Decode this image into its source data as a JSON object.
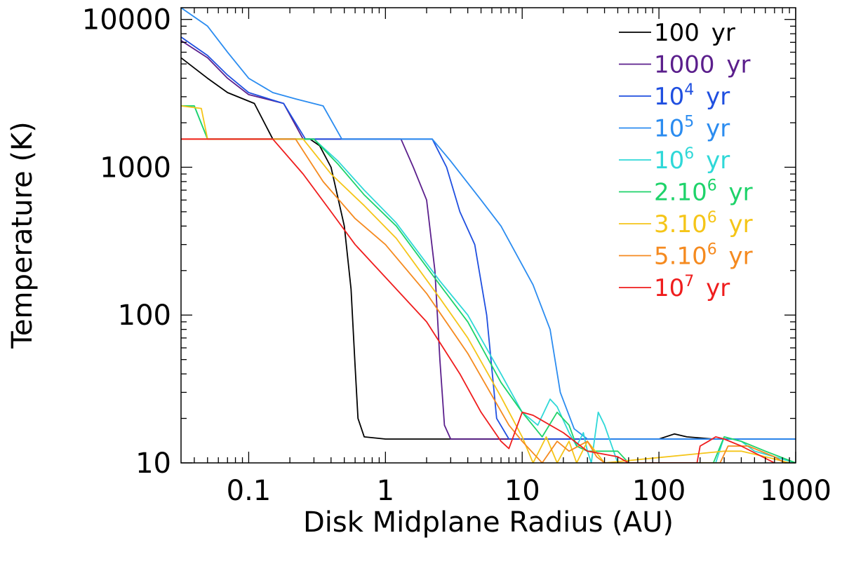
{
  "chart_data": {
    "type": "line",
    "xlabel": "Disk Midplane Radius (AU)",
    "ylabel": "Temperature (K)",
    "x_scale": "log",
    "y_scale": "log",
    "xlim": [
      0.032,
      1000
    ],
    "ylim": [
      10,
      12000
    ],
    "x_ticks": [
      0.1,
      1,
      10,
      100,
      1000
    ],
    "x_tick_labels": [
      "0.1",
      "1",
      "10",
      "100",
      "1000"
    ],
    "y_ticks": [
      10,
      100,
      1000,
      10000
    ],
    "y_tick_labels": [
      "10",
      "100",
      "1000",
      "10000"
    ],
    "grid": false,
    "legend_position": "top-right",
    "series": [
      {
        "name": "100 yr",
        "legend": {
          "base": "100",
          "exp": "",
          "tail": " yr"
        },
        "color": "#000000",
        "points": [
          [
            0.032,
            5500
          ],
          [
            0.05,
            4000
          ],
          [
            0.07,
            3200
          ],
          [
            0.11,
            2700
          ],
          [
            0.15,
            1550
          ],
          [
            0.28,
            1550
          ],
          [
            0.33,
            1400
          ],
          [
            0.4,
            1000
          ],
          [
            0.5,
            400
          ],
          [
            0.56,
            150
          ],
          [
            0.6,
            45
          ],
          [
            0.63,
            20
          ],
          [
            0.7,
            15
          ],
          [
            1,
            14.5
          ],
          [
            100,
            14.5
          ],
          [
            130,
            15.7
          ],
          [
            160,
            15
          ],
          [
            250,
            14.5
          ],
          [
            1000,
            14.5
          ]
        ]
      },
      {
        "name": "1000 yr",
        "legend": {
          "base": "1000",
          "exp": "",
          "tail": " yr"
        },
        "color": "#5b1f8c",
        "points": [
          [
            0.032,
            7200
          ],
          [
            0.05,
            5500
          ],
          [
            0.07,
            4000
          ],
          [
            0.1,
            3100
          ],
          [
            0.18,
            2700
          ],
          [
            0.25,
            1550
          ],
          [
            1.3,
            1550
          ],
          [
            1.6,
            1000
          ],
          [
            2.0,
            600
          ],
          [
            2.3,
            200
          ],
          [
            2.5,
            50
          ],
          [
            2.7,
            18
          ],
          [
            3,
            14.5
          ],
          [
            1000,
            14.5
          ]
        ]
      },
      {
        "name": "10⁴ yr",
        "legend": {
          "base": "10",
          "exp": "4",
          "tail": " yr"
        },
        "color": "#1f4fe0",
        "points": [
          [
            0.032,
            7600
          ],
          [
            0.05,
            5700
          ],
          [
            0.07,
            4200
          ],
          [
            0.1,
            3200
          ],
          [
            0.18,
            2700
          ],
          [
            0.26,
            1550
          ],
          [
            2.2,
            1550
          ],
          [
            2.8,
            1000
          ],
          [
            3.5,
            500
          ],
          [
            4.5,
            300
          ],
          [
            5.5,
            100
          ],
          [
            6.5,
            20
          ],
          [
            8,
            14.5
          ],
          [
            1000,
            14.5
          ]
        ]
      },
      {
        "name": "10⁵ yr",
        "legend": {
          "base": "10",
          "exp": "5",
          "tail": " yr"
        },
        "color": "#2b8cf0",
        "points": [
          [
            0.032,
            12000
          ],
          [
            0.05,
            9000
          ],
          [
            0.07,
            6000
          ],
          [
            0.1,
            4000
          ],
          [
            0.15,
            3200
          ],
          [
            0.22,
            2900
          ],
          [
            0.35,
            2600
          ],
          [
            0.48,
            1550
          ],
          [
            2.2,
            1550
          ],
          [
            3,
            1100
          ],
          [
            5,
            600
          ],
          [
            7,
            400
          ],
          [
            12,
            160
          ],
          [
            16,
            80
          ],
          [
            19,
            30
          ],
          [
            24,
            17
          ],
          [
            30,
            14.5
          ],
          [
            1000,
            14.5
          ]
        ]
      },
      {
        "name": "10⁶ yr",
        "legend": {
          "base": "10",
          "exp": "6",
          "tail": " yr"
        },
        "color": "#2fd8d8",
        "points": [
          [
            0.032,
            2600
          ],
          [
            0.04,
            2600
          ],
          [
            0.05,
            1550
          ],
          [
            0.3,
            1550
          ],
          [
            0.45,
            1100
          ],
          [
            0.7,
            700
          ],
          [
            1.2,
            420
          ],
          [
            2.5,
            170
          ],
          [
            4,
            100
          ],
          [
            7,
            40
          ],
          [
            10,
            22
          ],
          [
            13,
            18
          ],
          [
            16,
            27
          ],
          [
            18,
            24
          ],
          [
            22,
            16
          ],
          [
            25,
            13
          ],
          [
            28,
            16
          ],
          [
            30,
            12
          ],
          [
            32,
            10
          ],
          [
            36,
            22
          ],
          [
            40,
            18
          ],
          [
            50,
            10
          ],
          [
            260,
            10
          ],
          [
            300,
            15
          ],
          [
            400,
            14
          ],
          [
            500,
            12
          ],
          [
            1000,
            10
          ]
        ]
      },
      {
        "name": "2.10⁶ yr",
        "legend": {
          "base": "2.10",
          "exp": "6",
          "tail": " yr"
        },
        "color": "#1ed36a",
        "points": [
          [
            0.032,
            2600
          ],
          [
            0.04,
            2600
          ],
          [
            0.05,
            1550
          ],
          [
            0.3,
            1550
          ],
          [
            0.45,
            1050
          ],
          [
            0.7,
            650
          ],
          [
            1.2,
            400
          ],
          [
            2.5,
            160
          ],
          [
            4,
            90
          ],
          [
            7,
            35
          ],
          [
            10,
            22
          ],
          [
            14,
            15
          ],
          [
            18,
            22
          ],
          [
            22,
            18
          ],
          [
            25,
            13
          ],
          [
            30,
            12
          ],
          [
            50,
            12
          ],
          [
            60,
            10
          ],
          [
            250,
            10
          ],
          [
            300,
            15
          ],
          [
            400,
            14
          ],
          [
            600,
            12
          ],
          [
            1000,
            10
          ]
        ]
      },
      {
        "name": "3.10⁶ yr",
        "legend": {
          "base": "3.10",
          "exp": "6",
          "tail": " yr"
        },
        "color": "#f5c518",
        "points": [
          [
            0.032,
            2600
          ],
          [
            0.045,
            2500
          ],
          [
            0.05,
            1550
          ],
          [
            0.25,
            1550
          ],
          [
            0.4,
            900
          ],
          [
            0.7,
            550
          ],
          [
            1.2,
            330
          ],
          [
            2.5,
            130
          ],
          [
            4,
            70
          ],
          [
            7,
            28
          ],
          [
            10,
            15
          ],
          [
            12,
            10
          ],
          [
            15,
            15
          ],
          [
            18,
            10
          ],
          [
            22,
            14
          ],
          [
            25,
            10
          ],
          [
            30,
            14
          ],
          [
            40,
            10
          ],
          [
            300,
            12
          ],
          [
            400,
            12
          ],
          [
            600,
            11
          ],
          [
            900,
            10
          ]
        ]
      },
      {
        "name": "5.10⁶ yr",
        "legend": {
          "base": "5.10",
          "exp": "6",
          "tail": " yr"
        },
        "color": "#f58a1f",
        "points": [
          [
            0.032,
            1550
          ],
          [
            0.22,
            1550
          ],
          [
            0.35,
            800
          ],
          [
            0.6,
            450
          ],
          [
            1,
            300
          ],
          [
            2,
            140
          ],
          [
            4,
            55
          ],
          [
            8,
            18
          ],
          [
            10,
            14
          ],
          [
            14,
            10
          ],
          [
            18,
            14
          ],
          [
            22,
            12
          ],
          [
            30,
            14
          ],
          [
            35,
            11
          ],
          [
            40,
            10
          ],
          [
            280,
            10
          ],
          [
            320,
            13
          ],
          [
            450,
            13
          ],
          [
            700,
            11
          ],
          [
            1000,
            9
          ]
        ]
      },
      {
        "name": "10⁷ yr",
        "legend": {
          "base": "10",
          "exp": "7",
          "tail": " yr"
        },
        "color": "#ef1d1d",
        "points": [
          [
            0.032,
            1550
          ],
          [
            0.15,
            1550
          ],
          [
            0.25,
            900
          ],
          [
            0.4,
            500
          ],
          [
            0.6,
            300
          ],
          [
            1,
            180
          ],
          [
            2,
            90
          ],
          [
            3.5,
            40
          ],
          [
            5,
            22
          ],
          [
            7,
            14
          ],
          [
            8,
            12.5
          ],
          [
            10,
            22
          ],
          [
            12,
            21
          ],
          [
            20,
            16
          ],
          [
            30,
            12
          ],
          [
            50,
            11
          ],
          [
            60,
            10
          ],
          [
            190,
            10
          ],
          [
            200,
            13
          ],
          [
            230,
            14
          ],
          [
            260,
            15
          ],
          [
            300,
            14.5
          ],
          [
            400,
            13
          ],
          [
            700,
            10
          ]
        ]
      }
    ]
  }
}
